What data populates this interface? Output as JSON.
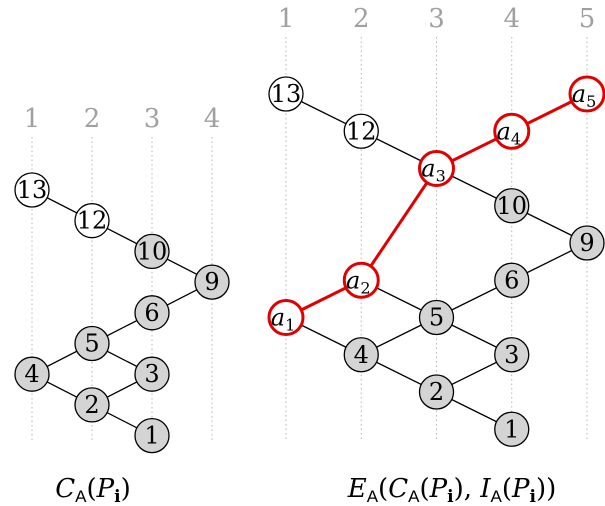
{
  "left": {
    "columns": [
      "1",
      "2",
      "3",
      "4"
    ],
    "nodes": [
      {
        "id": "13",
        "col": 1,
        "row": 0,
        "fill": "#ffffff"
      },
      {
        "id": "12",
        "col": 2,
        "row": 1,
        "fill": "#ffffff"
      },
      {
        "id": "10",
        "col": 3,
        "row": 2,
        "fill": "#d4d4d4"
      },
      {
        "id": "9",
        "col": 4,
        "row": 3,
        "fill": "#d4d4d4"
      },
      {
        "id": "6",
        "col": 3,
        "row": 4,
        "fill": "#d4d4d4"
      },
      {
        "id": "5",
        "col": 2,
        "row": 5,
        "fill": "#d4d4d4"
      },
      {
        "id": "4",
        "col": 1,
        "row": 6,
        "fill": "#d4d4d4"
      },
      {
        "id": "3",
        "col": 3,
        "row": 6,
        "fill": "#d4d4d4"
      },
      {
        "id": "2",
        "col": 2,
        "row": 7,
        "fill": "#d4d4d4"
      },
      {
        "id": "1",
        "col": 3,
        "row": 8,
        "fill": "#d4d4d4"
      }
    ],
    "edges": [
      [
        "13",
        "12"
      ],
      [
        "12",
        "10"
      ],
      [
        "10",
        "9"
      ],
      [
        "9",
        "6"
      ],
      [
        "6",
        "5"
      ],
      [
        "5",
        "4"
      ],
      [
        "5",
        "3"
      ],
      [
        "4",
        "2"
      ],
      [
        "3",
        "2"
      ],
      [
        "2",
        "1"
      ]
    ],
    "caption": {
      "main": "C",
      "sub": "A",
      "arg": "P",
      "argsub": "i"
    }
  },
  "right": {
    "columns": [
      "1",
      "2",
      "3",
      "4",
      "5"
    ],
    "nodes": [
      {
        "id": "13",
        "col": 1,
        "row": 0,
        "fill": "#ffffff"
      },
      {
        "id": "12",
        "col": 2,
        "row": 1,
        "fill": "#ffffff"
      },
      {
        "id": "10",
        "col": 4,
        "row": 3,
        "fill": "#d4d4d4"
      },
      {
        "id": "9",
        "col": 5,
        "row": 4,
        "fill": "#d4d4d4"
      },
      {
        "id": "6",
        "col": 4,
        "row": 5,
        "fill": "#d4d4d4"
      },
      {
        "id": "5",
        "col": 3,
        "row": 6,
        "fill": "#d4d4d4"
      },
      {
        "id": "4",
        "col": 2,
        "row": 7,
        "fill": "#d4d4d4"
      },
      {
        "id": "3",
        "col": 4,
        "row": 7,
        "fill": "#d4d4d4"
      },
      {
        "id": "2",
        "col": 3,
        "row": 8,
        "fill": "#d4d4d4"
      },
      {
        "id": "1",
        "col": 4,
        "row": 9,
        "fill": "#d4d4d4"
      },
      {
        "id": "a1",
        "col": 1,
        "row": 6,
        "fill": "#ffffff",
        "red": true,
        "var": "a",
        "sub": "1"
      },
      {
        "id": "a2",
        "col": 2,
        "row": 5,
        "fill": "#ffffff",
        "red": true,
        "var": "a",
        "sub": "2"
      },
      {
        "id": "a3",
        "col": 3,
        "row": 2,
        "fill": "#ffffff",
        "red": true,
        "var": "a",
        "sub": "3"
      },
      {
        "id": "a4",
        "col": 4,
        "row": 1,
        "fill": "#ffffff",
        "red": true,
        "var": "a",
        "sub": "4"
      },
      {
        "id": "a5",
        "col": 5,
        "row": 0,
        "fill": "#ffffff",
        "red": true,
        "var": "a",
        "sub": "5"
      }
    ],
    "edges": [
      [
        "13",
        "12"
      ],
      [
        "12",
        "a3"
      ],
      [
        "a3",
        "10"
      ],
      [
        "10",
        "9"
      ],
      [
        "9",
        "6"
      ],
      [
        "6",
        "5"
      ],
      [
        "a2",
        "5"
      ],
      [
        "a1",
        "4"
      ],
      [
        "5",
        "4"
      ],
      [
        "5",
        "3"
      ],
      [
        "4",
        "2"
      ],
      [
        "3",
        "2"
      ],
      [
        "2",
        "1"
      ]
    ],
    "red_edges": [
      [
        "a1",
        "a2"
      ],
      [
        "a2",
        "a3"
      ],
      [
        "a3",
        "a4"
      ],
      [
        "a4",
        "a5"
      ]
    ],
    "caption": {
      "main": "E",
      "sub": "A",
      "inner1": "C",
      "inner1sub": "A",
      "arg": "P",
      "argsub": "i",
      "inner2": "I",
      "inner2sub": "A"
    }
  },
  "colors": {
    "grey_fill": "#d4d4d4",
    "red": "#e00000",
    "label_grey": "#a0a0a0"
  }
}
